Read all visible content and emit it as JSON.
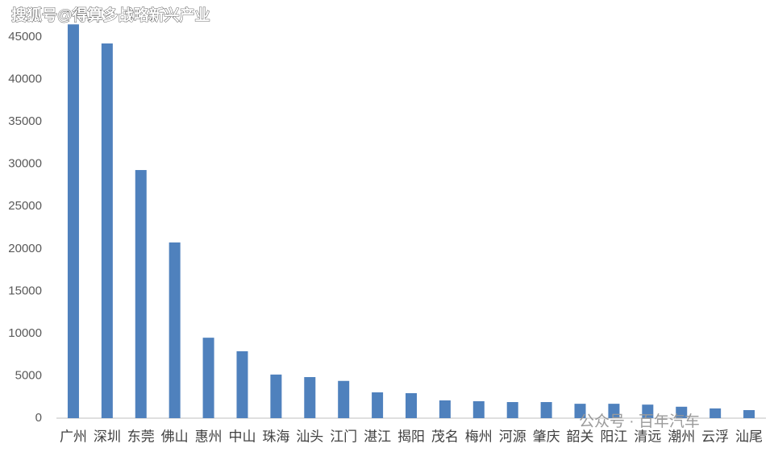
{
  "chart_data": {
    "type": "bar",
    "categories": [
      "广州",
      "深圳",
      "东莞",
      "佛山",
      "惠州",
      "中山",
      "珠海",
      "汕头",
      "江门",
      "湛江",
      "揭阳",
      "茂名",
      "梅州",
      "河源",
      "肇庆",
      "韶关",
      "阳江",
      "清远",
      "潮州",
      "云浮",
      "汕尾"
    ],
    "values": [
      46500,
      44250,
      29300,
      20750,
      9500,
      7900,
      5150,
      4850,
      4400,
      3050,
      2950,
      2100,
      2000,
      1900,
      1900,
      1700,
      1700,
      1600,
      1350,
      1150,
      950
    ],
    "color": "#4f81bd",
    "ylim": [
      0,
      47000
    ],
    "yticks": [
      0,
      5000,
      10000,
      15000,
      20000,
      25000,
      30000,
      35000,
      40000,
      45000
    ],
    "grid": false,
    "annotations": [
      "搜狐号@得算多战略新兴产业",
      "公众号 · 百年汽车"
    ]
  }
}
